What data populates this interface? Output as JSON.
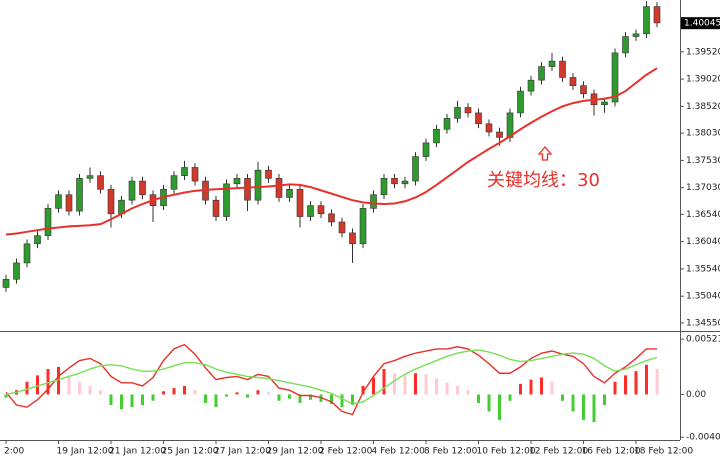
{
  "chart_data": [
    {
      "type": "candlestick",
      "categories": [
        "2:00",
        null,
        null,
        null,
        null,
        "19 Jan 12:00",
        null,
        null,
        null,
        null,
        "21 Jan 12:00",
        null,
        null,
        null,
        null,
        "25 Jan 12:00",
        null,
        null,
        null,
        null,
        "27 Jan 12:00",
        null,
        null,
        null,
        null,
        "29 Jan 12:00",
        null,
        null,
        null,
        null,
        "2 Feb 12:00",
        null,
        null,
        null,
        null,
        "4 Feb 12:00",
        null,
        null,
        null,
        null,
        "8 Feb 12:00",
        null,
        null,
        null,
        null,
        "10 Feb 12:00",
        null,
        null,
        null,
        null,
        "12 Feb 12:00",
        null,
        null,
        null,
        null,
        "16 Feb 12:00",
        null,
        null,
        null,
        null,
        "18 Feb 12:00",
        null,
        null
      ],
      "ohlc": [
        [
          1.352,
          1.3543,
          1.3512,
          1.3535
        ],
        [
          1.3535,
          1.3573,
          1.3527,
          1.3565
        ],
        [
          1.3565,
          1.3608,
          1.3557,
          1.36
        ],
        [
          1.36,
          1.3623,
          1.3592,
          1.3615
        ],
        [
          1.3615,
          1.3673,
          1.3607,
          1.3665
        ],
        [
          1.3665,
          1.3698,
          1.3657,
          1.369
        ],
        [
          1.369,
          1.3698,
          1.3652,
          1.366
        ],
        [
          1.366,
          1.3728,
          1.3652,
          1.372
        ],
        [
          1.372,
          1.374,
          1.3712,
          1.3725
        ],
        [
          1.3725,
          1.3733,
          1.3692,
          1.37
        ],
        [
          1.37,
          1.3708,
          1.363,
          1.3655
        ],
        [
          1.3655,
          1.3688,
          1.3647,
          1.368
        ],
        [
          1.368,
          1.3723,
          1.3672,
          1.3715
        ],
        [
          1.3715,
          1.3723,
          1.3682,
          1.369
        ],
        [
          1.369,
          1.3698,
          1.364,
          1.367
        ],
        [
          1.367,
          1.3708,
          1.3662,
          1.37
        ],
        [
          1.37,
          1.3733,
          1.3692,
          1.3725
        ],
        [
          1.3725,
          1.3752,
          1.3717,
          1.374
        ],
        [
          1.374,
          1.3748,
          1.3707,
          1.3715
        ],
        [
          1.3715,
          1.3723,
          1.3672,
          1.368
        ],
        [
          1.368,
          1.3688,
          1.3642,
          1.365
        ],
        [
          1.365,
          1.3718,
          1.3642,
          1.371
        ],
        [
          1.371,
          1.3728,
          1.3702,
          1.372
        ],
        [
          1.372,
          1.3728,
          1.366,
          1.368
        ],
        [
          1.368,
          1.375,
          1.3672,
          1.3735
        ],
        [
          1.3735,
          1.3743,
          1.3712,
          1.372
        ],
        [
          1.372,
          1.3728,
          1.3677,
          1.3685
        ],
        [
          1.3685,
          1.3708,
          1.3677,
          1.37
        ],
        [
          1.37,
          1.3708,
          1.363,
          1.365
        ],
        [
          1.365,
          1.3678,
          1.3642,
          1.367
        ],
        [
          1.367,
          1.3678,
          1.3647,
          1.3655
        ],
        [
          1.3655,
          1.3663,
          1.3632,
          1.364
        ],
        [
          1.364,
          1.3648,
          1.3612,
          1.362
        ],
        [
          1.362,
          1.3628,
          1.3565,
          1.36
        ],
        [
          1.36,
          1.3673,
          1.3592,
          1.3665
        ],
        [
          1.3665,
          1.3698,
          1.3657,
          1.369
        ],
        [
          1.369,
          1.3728,
          1.3682,
          1.372
        ],
        [
          1.372,
          1.3728,
          1.3702,
          1.371
        ],
        [
          1.371,
          1.3723,
          1.3702,
          1.3715
        ],
        [
          1.3715,
          1.3768,
          1.3707,
          1.376
        ],
        [
          1.376,
          1.3793,
          1.3752,
          1.3785
        ],
        [
          1.3785,
          1.3818,
          1.3777,
          1.381
        ],
        [
          1.381,
          1.3838,
          1.3802,
          1.383
        ],
        [
          1.383,
          1.3862,
          1.3822,
          1.385
        ],
        [
          1.385,
          1.3858,
          1.3832,
          1.384
        ],
        [
          1.384,
          1.3848,
          1.3812,
          1.382
        ],
        [
          1.382,
          1.3828,
          1.3797,
          1.3805
        ],
        [
          1.3805,
          1.3813,
          1.378,
          1.3795
        ],
        [
          1.3795,
          1.3848,
          1.3787,
          1.384
        ],
        [
          1.384,
          1.3888,
          1.3832,
          1.388
        ],
        [
          1.388,
          1.3908,
          1.3872,
          1.39
        ],
        [
          1.39,
          1.3933,
          1.3892,
          1.3925
        ],
        [
          1.3925,
          1.395,
          1.3917,
          1.3935
        ],
        [
          1.3935,
          1.3943,
          1.3897,
          1.3905
        ],
        [
          1.3905,
          1.3913,
          1.3882,
          1.389
        ],
        [
          1.389,
          1.3898,
          1.3867,
          1.3875
        ],
        [
          1.3875,
          1.3883,
          1.3835,
          1.3855
        ],
        [
          1.3855,
          1.3868,
          1.384,
          1.386
        ],
        [
          1.386,
          1.3958,
          1.3852,
          1.395
        ],
        [
          1.395,
          1.3988,
          1.3942,
          1.398
        ],
        [
          1.398,
          1.3993,
          1.3972,
          1.3985
        ],
        [
          1.3985,
          1.4045,
          1.3977,
          1.4035
        ],
        [
          1.4035,
          1.4043,
          1.3997,
          1.4005
        ]
      ],
      "up_color": "#2e9b2e",
      "down_color": "#d0392b",
      "wick_color": "#333333",
      "ma_values": [
        1.3617,
        1.3619,
        1.3622,
        1.3625,
        1.3628,
        1.363,
        1.3632,
        1.3633,
        1.3634,
        1.3636,
        1.3645,
        1.3655,
        1.3665,
        1.3673,
        1.368,
        1.3686,
        1.369,
        1.3694,
        1.3697,
        1.3699,
        1.37,
        1.3701,
        1.3702,
        1.3703,
        1.3704,
        1.3705,
        1.3707,
        1.3709,
        1.3708,
        1.3704,
        1.3698,
        1.3692,
        1.3686,
        1.368,
        1.3676,
        1.3674,
        1.3673,
        1.3674,
        1.3678,
        1.3685,
        1.3695,
        1.3708,
        1.3722,
        1.3736,
        1.375,
        1.3762,
        1.3774,
        1.3785,
        1.3797,
        1.381,
        1.3822,
        1.3833,
        1.3843,
        1.3852,
        1.3858,
        1.3862,
        1.3864,
        1.3866,
        1.387,
        1.388,
        1.3895,
        1.391,
        1.3922
      ],
      "ma_color": "#e8312a",
      "ylim": [
        1.3442,
        1.4047
      ],
      "yticks": [
        {
          "value": 1.3455,
          "label": "1.34550"
        },
        {
          "value": 1.3504,
          "label": "1.35040"
        },
        {
          "value": 1.3554,
          "label": "1.35540"
        },
        {
          "value": 1.3604,
          "label": "1.36040"
        },
        {
          "value": 1.3654,
          "label": "1.36540"
        },
        {
          "value": 1.3703,
          "label": "1.37030"
        },
        {
          "value": 1.3753,
          "label": "1.37530"
        },
        {
          "value": 1.3803,
          "label": "1.38030"
        },
        {
          "value": 1.3852,
          "label": "1.38520"
        },
        {
          "value": 1.3902,
          "label": "1.39020"
        },
        {
          "value": 1.3952,
          "label": "1.39520"
        }
      ],
      "last_price": 1.40045,
      "annotation": "关键均线：30"
    },
    {
      "type": "macd",
      "histogram": [
        -0.0003,
        0.0004,
        0.0012,
        0.0018,
        0.0024,
        0.0026,
        0.0018,
        0.0012,
        0.0008,
        0.0004,
        -0.001,
        -0.0014,
        -0.0012,
        -0.001,
        -0.0006,
        0.0003,
        0.0006,
        0.0008,
        0.0004,
        -0.0008,
        -0.0012,
        -0.0002,
        0.0002,
        -0.0003,
        0.0004,
        0.0002,
        -0.0006,
        -0.0004,
        -0.0008,
        -0.0005,
        -0.0007,
        -0.0009,
        -0.0012,
        -0.001,
        0.0008,
        0.0016,
        0.0024,
        0.002,
        0.0018,
        0.002,
        0.0019,
        0.0015,
        0.0011,
        0.0008,
        0.0004,
        -0.0008,
        -0.0016,
        -0.0024,
        -0.0006,
        0.001,
        0.0014,
        0.0016,
        0.0012,
        -0.0006,
        -0.0016,
        -0.0024,
        -0.0026,
        -0.001,
        0.0012,
        0.0018,
        0.0022,
        0.0028,
        0.0024
      ],
      "hist_colors": {
        "rising": "#ff2a2a",
        "falling": "#ffc8d2",
        "negative": "#44cc33"
      },
      "series": [
        {
          "color": "#e8312a",
          "values": [
            0.0002,
            -0.001,
            -0.0012,
            -0.0005,
            0.0005,
            0.0017,
            0.0025,
            0.0032,
            0.0034,
            0.0029,
            0.0017,
            0.0011,
            0.0011,
            0.0008,
            0.0016,
            0.0032,
            0.0043,
            0.0047,
            0.0038,
            0.0025,
            0.0014,
            0.0016,
            0.0017,
            0.0014,
            0.0019,
            0.0017,
            0.0006,
            0.0004,
            -0.0001,
            -0.0001,
            -0.0003,
            -0.0007,
            -0.0016,
            -0.0019,
            0.0002,
            0.0017,
            0.0029,
            0.0032,
            0.0036,
            0.0039,
            0.0041,
            0.0043,
            0.0043,
            0.0045,
            0.0043,
            0.0037,
            0.0029,
            0.002,
            0.002,
            0.0026,
            0.0034,
            0.0039,
            0.0041,
            0.0038,
            0.0036,
            0.0029,
            0.0017,
            0.0011,
            0.002,
            0.0026,
            0.0034,
            0.0043,
            0.0043
          ]
        },
        {
          "color": "#77e055",
          "values": [
            0.0,
            0.0002,
            0.0005,
            0.0008,
            0.0011,
            0.0014,
            0.0017,
            0.002,
            0.0024,
            0.0027,
            0.0028,
            0.0027,
            0.0024,
            0.0022,
            0.0022,
            0.0024,
            0.0027,
            0.003,
            0.003,
            0.0028,
            0.0024,
            0.0021,
            0.0019,
            0.0017,
            0.0016,
            0.0015,
            0.0013,
            0.0011,
            0.0009,
            0.0007,
            0.0004,
            0.0001,
            -0.0004,
            -0.0009,
            -0.0007,
            -0.0001,
            0.0006,
            0.0013,
            0.0019,
            0.0024,
            0.0028,
            0.0032,
            0.0036,
            0.0039,
            0.0041,
            0.0042,
            0.004,
            0.0037,
            0.0033,
            0.0031,
            0.0032,
            0.0034,
            0.0036,
            0.0038,
            0.0039,
            0.0038,
            0.0034,
            0.0027,
            0.0022,
            0.0024,
            0.0028,
            0.0032,
            0.0035
          ]
        }
      ],
      "ylim": [
        -0.0043,
        0.0058
      ],
      "yticks": [
        0.0052195,
        {
          "value": 0,
          "label": "0.00"
        },
        {
          "value": -0.004033,
          "label": "-0.0040330"
        }
      ]
    }
  ]
}
